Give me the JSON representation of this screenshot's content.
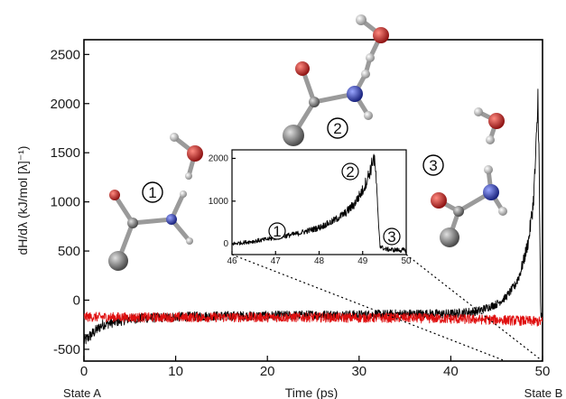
{
  "chart_data": [
    {
      "type": "line",
      "title": "",
      "xlabel": "Time (ps)",
      "ylabel": "dH/dλ (kJ/mol [λ]⁻¹)",
      "xlim": [
        0,
        50
      ],
      "ylim": [
        -620,
        2650
      ],
      "x_ticks": [
        0,
        10,
        20,
        30,
        40,
        50
      ],
      "y_ticks": [
        -500,
        0,
        500,
        1000,
        1500,
        2000,
        2500
      ],
      "grid": false,
      "state_labels": [
        "State A",
        "State B"
      ],
      "series": [
        {
          "color": "#000000",
          "x": [
            0,
            2,
            5,
            10,
            15,
            20,
            25,
            30,
            35,
            40,
            43,
            45,
            46,
            47,
            47.5,
            48,
            48.5,
            49,
            49.2,
            49.4,
            49.5,
            49.6,
            49.8,
            50
          ],
          "y": [
            -420,
            -250,
            -190,
            -170,
            -160,
            -160,
            -150,
            -150,
            -140,
            -140,
            -110,
            -40,
            30,
            150,
            260,
            420,
            620,
            1000,
            1350,
            1750,
            2080,
            1600,
            -150,
            -200
          ]
        },
        {
          "color": "#e01010",
          "x": [
            0,
            5,
            10,
            15,
            20,
            25,
            30,
            35,
            40,
            45,
            48,
            50
          ],
          "y": [
            -170,
            -175,
            -175,
            -175,
            -175,
            -175,
            -180,
            -180,
            -190,
            -200,
            -210,
            -220
          ]
        }
      ],
      "annotations": [
        "1",
        "2",
        "3"
      ],
      "molecule_atoms": [
        "O",
        "N",
        "C"
      ]
    },
    {
      "type": "line",
      "title": "",
      "xlim": [
        46,
        50
      ],
      "ylim": [
        -250,
        2200
      ],
      "x_ticks": [
        46,
        47,
        48,
        49,
        50
      ],
      "y_ticks": [
        0,
        1000,
        2000
      ],
      "grid": false,
      "series": [
        {
          "color": "#000000",
          "x": [
            46,
            46.5,
            47,
            47.5,
            48,
            48.3,
            48.6,
            48.8,
            49,
            49.1,
            49.2,
            49.25,
            49.3,
            49.35,
            49.4,
            49.5,
            49.7,
            50
          ],
          "y": [
            0,
            60,
            140,
            240,
            380,
            520,
            720,
            920,
            1250,
            1500,
            1800,
            2050,
            1700,
            700,
            -50,
            -120,
            -140,
            -150
          ]
        }
      ],
      "annotations": [
        "1",
        "2",
        "3"
      ]
    }
  ],
  "colors": {
    "trajectory_black": "#000000",
    "trajectory_red": "#e01010",
    "oxygen": "#c0282a",
    "nitrogen": "#2b3aa8",
    "carbon": "#8a8a8a",
    "hydrogen": "#d9d9d9"
  }
}
